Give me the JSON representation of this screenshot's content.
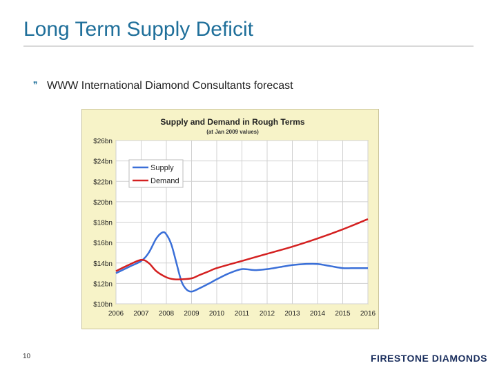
{
  "slide": {
    "title": "Long Term Supply Deficit",
    "bullet": "WWW International Diamond Consultants forecast",
    "page_number": "10",
    "logo_text": "FIRESTONE DIAMONDS"
  },
  "chart_data": {
    "type": "line",
    "title": "Supply and Demand in Rough Terms",
    "subtitle": "(at Jan 2009 values)",
    "xlabel": "",
    "ylabel": "",
    "x": [
      2006,
      2007,
      2008,
      2009,
      2010,
      2011,
      2012,
      2013,
      2014,
      2015,
      2016
    ],
    "x_tick_labels": [
      "2006",
      "2007",
      "2008",
      "2009",
      "2010",
      "2011",
      "2012",
      "2013",
      "2014",
      "2015",
      "2016"
    ],
    "y_tick_labels": [
      "$10bn",
      "$12bn",
      "$14bn",
      "$16bn",
      "$18bn",
      "$20bn",
      "$22bn",
      "$24bn",
      "$26bn"
    ],
    "ylim": [
      10,
      26
    ],
    "grid": true,
    "legend_position": "top-left",
    "series": [
      {
        "name": "Supply",
        "color": "#3a6fd8",
        "points": [
          [
            2006.0,
            13.0
          ],
          [
            2006.5,
            13.6
          ],
          [
            2007.0,
            14.2
          ],
          [
            2007.3,
            15.0
          ],
          [
            2007.6,
            16.4
          ],
          [
            2007.85,
            17.0
          ],
          [
            2008.0,
            16.8
          ],
          [
            2008.2,
            15.8
          ],
          [
            2008.4,
            14.0
          ],
          [
            2008.6,
            12.2
          ],
          [
            2008.8,
            11.4
          ],
          [
            2009.0,
            11.2
          ],
          [
            2009.3,
            11.5
          ],
          [
            2009.7,
            12.0
          ],
          [
            2010.0,
            12.4
          ],
          [
            2010.5,
            13.0
          ],
          [
            2011.0,
            13.4
          ],
          [
            2011.5,
            13.3
          ],
          [
            2012.0,
            13.4
          ],
          [
            2012.5,
            13.6
          ],
          [
            2013.0,
            13.8
          ],
          [
            2013.5,
            13.9
          ],
          [
            2014.0,
            13.9
          ],
          [
            2014.5,
            13.7
          ],
          [
            2015.0,
            13.5
          ],
          [
            2015.5,
            13.5
          ],
          [
            2016.0,
            13.5
          ]
        ]
      },
      {
        "name": "Demand",
        "color": "#d42020",
        "points": [
          [
            2006.0,
            13.2
          ],
          [
            2006.5,
            13.8
          ],
          [
            2007.0,
            14.3
          ],
          [
            2007.3,
            14.0
          ],
          [
            2007.6,
            13.2
          ],
          [
            2008.0,
            12.6
          ],
          [
            2008.3,
            12.4
          ],
          [
            2008.6,
            12.4
          ],
          [
            2009.0,
            12.5
          ],
          [
            2009.3,
            12.8
          ],
          [
            2009.7,
            13.2
          ],
          [
            2010.0,
            13.5
          ],
          [
            2011.0,
            14.2
          ],
          [
            2012.0,
            14.9
          ],
          [
            2013.0,
            15.6
          ],
          [
            2014.0,
            16.4
          ],
          [
            2015.0,
            17.3
          ],
          [
            2016.0,
            18.3
          ]
        ]
      }
    ]
  },
  "colors": {
    "title": "#1f6f9a",
    "chart_bg": "#f7f3c8",
    "plot_bg": "#ffffff",
    "grid": "#d0d0d0"
  }
}
